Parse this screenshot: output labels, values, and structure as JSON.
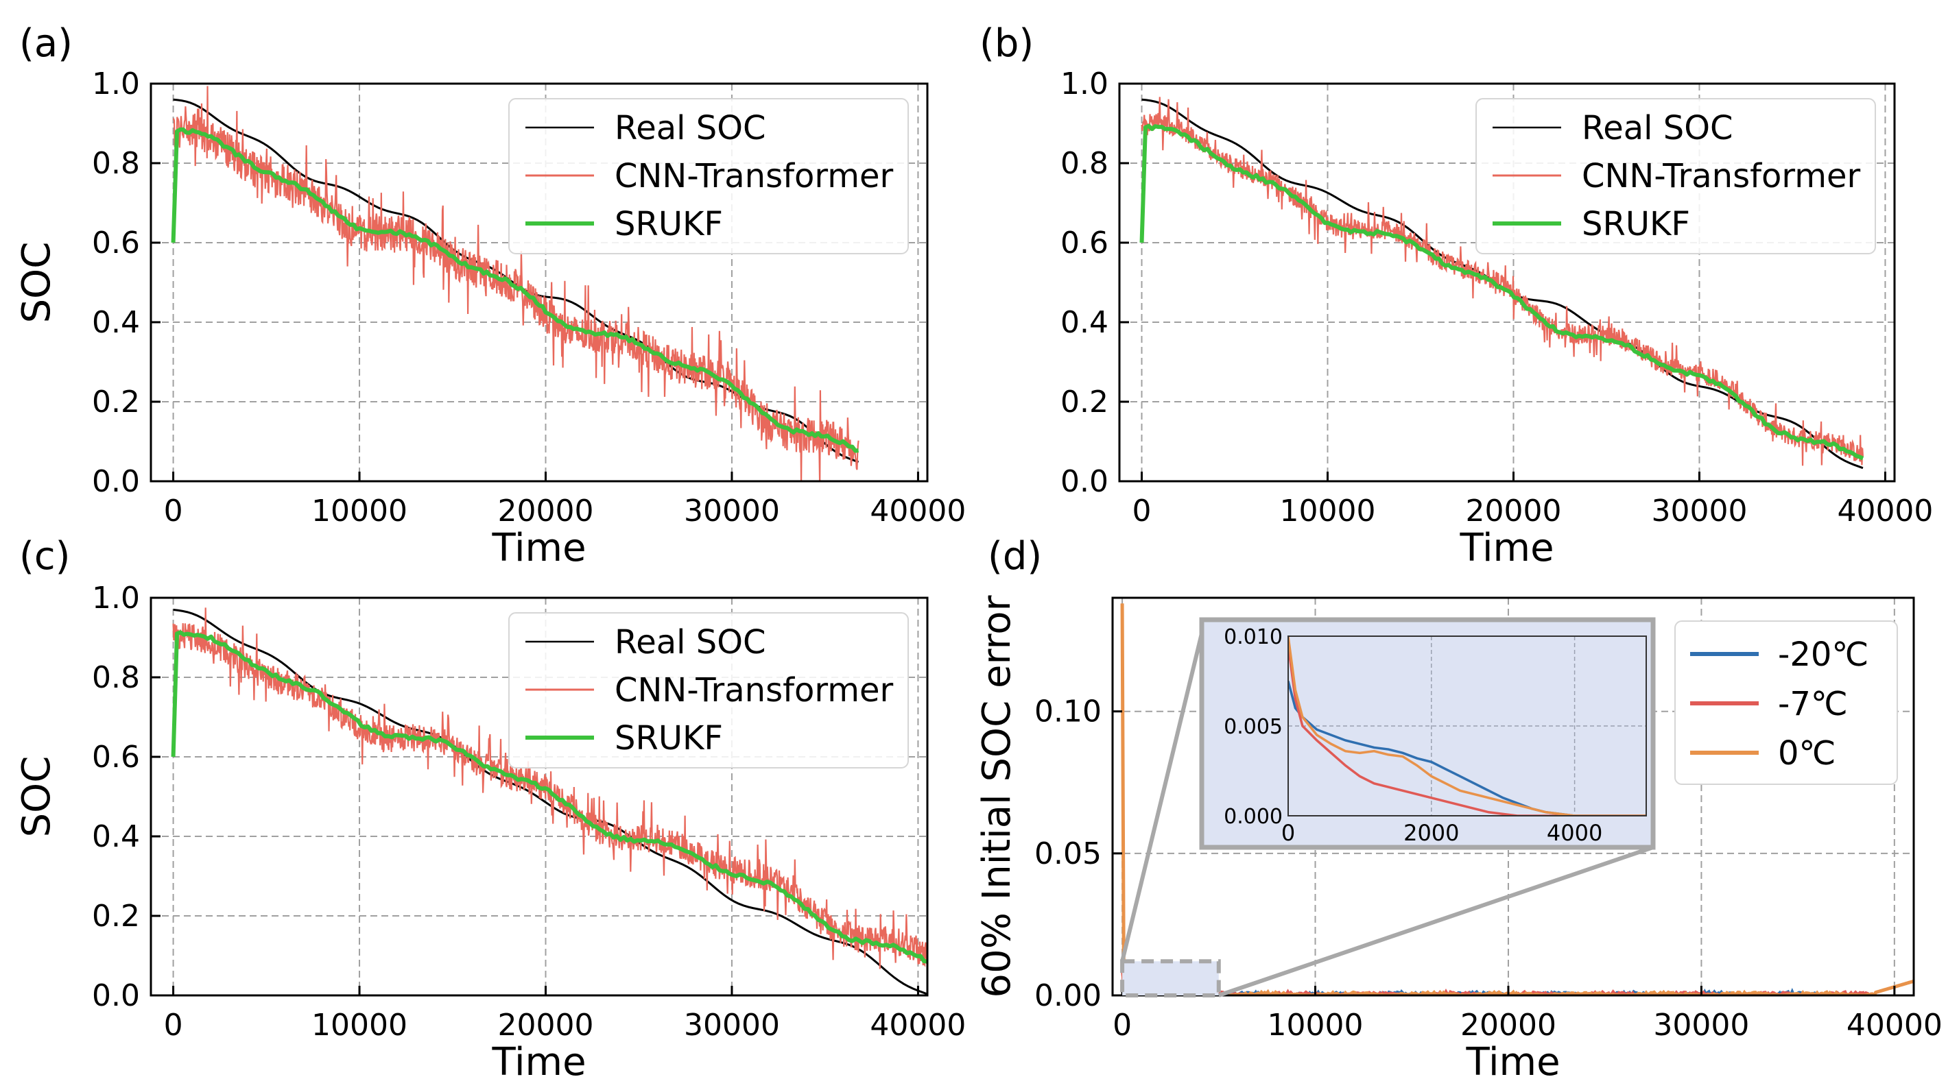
{
  "chart_data": [
    {
      "panel_label": "(a)",
      "type": "line",
      "xlabel": "Time",
      "ylabel": "SOC",
      "xlim": [
        -1200,
        40500
      ],
      "ylim": [
        0.0,
        1.0
      ],
      "xticks": [
        0,
        10000,
        20000,
        30000,
        40000
      ],
      "xtick_labels": [
        "0",
        "10000",
        "20000",
        "30000",
        "40000"
      ],
      "yticks": [
        0.0,
        0.2,
        0.4,
        0.6,
        0.8,
        1.0
      ],
      "ytick_labels": [
        "0.0",
        "0.2",
        "0.4",
        "0.6",
        "0.8",
        "1.0"
      ],
      "grid": true,
      "legend_position": "upper-right",
      "series": [
        {
          "name": "Real SOC",
          "color": "#000000",
          "kind": "linear",
          "start": [
            0,
            0.96
          ],
          "end": [
            36800,
            0.055
          ]
        },
        {
          "name": "CNN-Transformer",
          "color": "#e8685b",
          "kind": "noisy",
          "start": [
            0,
            0.88
          ],
          "end": [
            36800,
            0.07
          ],
          "noise": 0.045
        },
        {
          "name": "SRUKF",
          "color": "#3cc23c",
          "kind": "filter",
          "start_value": 0.6,
          "peak": [
            200,
            0.88
          ],
          "end": [
            36800,
            0.075
          ]
        }
      ]
    },
    {
      "panel_label": "(b)",
      "type": "line",
      "xlabel": "Time",
      "ylabel": "SOC",
      "xlim": [
        -1200,
        40500
      ],
      "ylim": [
        0.0,
        1.0
      ],
      "xticks": [
        0,
        10000,
        20000,
        30000,
        40000
      ],
      "xtick_labels": [
        "0",
        "10000",
        "20000",
        "30000",
        "40000"
      ],
      "yticks": [
        0.0,
        0.2,
        0.4,
        0.6,
        0.8,
        1.0
      ],
      "ytick_labels": [
        "0.0",
        "0.2",
        "0.4",
        "0.6",
        "0.8",
        "1.0"
      ],
      "grid": true,
      "legend_position": "upper-right",
      "series": [
        {
          "name": "Real SOC",
          "color": "#000000",
          "kind": "linear",
          "start": [
            0,
            0.96
          ],
          "end": [
            38800,
            0.04
          ]
        },
        {
          "name": "CNN-Transformer",
          "color": "#e8685b",
          "kind": "noisy",
          "start": [
            0,
            0.9
          ],
          "end": [
            38800,
            0.06
          ],
          "noise": 0.025
        },
        {
          "name": "SRUKF",
          "color": "#3cc23c",
          "kind": "filter",
          "start_value": 0.6,
          "peak": [
            200,
            0.89
          ],
          "end": [
            38800,
            0.055
          ]
        }
      ]
    },
    {
      "panel_label": "(c)",
      "type": "line",
      "xlabel": "Time",
      "ylabel": "SOC",
      "xlim": [
        -1200,
        40500
      ],
      "ylim": [
        0.0,
        1.0
      ],
      "xticks": [
        0,
        10000,
        20000,
        30000,
        40000
      ],
      "xtick_labels": [
        "0",
        "10000",
        "20000",
        "30000",
        "40000"
      ],
      "yticks": [
        0.0,
        0.2,
        0.4,
        0.6,
        0.8,
        1.0
      ],
      "ytick_labels": [
        "0.0",
        "0.2",
        "0.4",
        "0.6",
        "0.8",
        "1.0"
      ],
      "grid": true,
      "legend_position": "upper-right",
      "series": [
        {
          "name": "Real SOC",
          "color": "#000000",
          "kind": "linear",
          "start": [
            0,
            0.97
          ],
          "end": [
            40500,
            0.01
          ]
        },
        {
          "name": "CNN-Transformer",
          "color": "#e8685b",
          "kind": "noisy",
          "start": [
            0,
            0.9
          ],
          "end": [
            40500,
            0.1
          ],
          "noise": 0.035
        },
        {
          "name": "SRUKF",
          "color": "#3cc23c",
          "kind": "filter",
          "start_value": 0.6,
          "peak": [
            200,
            0.91
          ],
          "end": [
            40500,
            0.085
          ]
        }
      ]
    },
    {
      "panel_label": "(d)",
      "type": "line",
      "xlabel": "Time",
      "ylabel": "60% Initial SOC error",
      "xlim": [
        -500,
        41000
      ],
      "ylim": [
        0.0,
        0.14
      ],
      "xticks": [
        0,
        10000,
        20000,
        30000,
        40000
      ],
      "xtick_labels": [
        "0",
        "10000",
        "20000",
        "30000",
        "40000"
      ],
      "yticks": [
        0.0,
        0.05,
        0.1
      ],
      "ytick_labels": [
        "0.00",
        "0.05",
        "0.10"
      ],
      "grid": true,
      "legend_position": "upper-right",
      "series": [
        {
          "name": "-20℃",
          "color": "#2f6fb0",
          "peak": 0.012,
          "end": 36000
        },
        {
          "name": "-7℃",
          "color": "#e05a55",
          "peak": 0.01,
          "end": 39000
        },
        {
          "name": "0℃",
          "color": "#e8924a",
          "peak": 0.138,
          "end": 41000
        }
      ],
      "inset": {
        "xlim": [
          0,
          5000
        ],
        "ylim": [
          0.0,
          0.01
        ],
        "xticks": [
          0,
          2000,
          4000
        ],
        "xtick_labels": [
          "0",
          "2000",
          "4000"
        ],
        "yticks": [
          0.0,
          0.005,
          0.01
        ],
        "ytick_labels": [
          "0.000",
          "0.005",
          "0.010"
        ],
        "series": [
          {
            "name": "-20℃",
            "points": [
              [
                0,
                0.0075
              ],
              [
                100,
                0.006
              ],
              [
                200,
                0.0055
              ],
              [
                400,
                0.0048
              ],
              [
                600,
                0.0045
              ],
              [
                800,
                0.0042
              ],
              [
                1000,
                0.004
              ],
              [
                1200,
                0.0038
              ],
              [
                1400,
                0.0037
              ],
              [
                1600,
                0.0035
              ],
              [
                1800,
                0.0032
              ],
              [
                2000,
                0.003
              ],
              [
                2200,
                0.0026
              ],
              [
                2400,
                0.0022
              ],
              [
                2600,
                0.0018
              ],
              [
                2800,
                0.0014
              ],
              [
                3000,
                0.001
              ],
              [
                3200,
                0.0007
              ],
              [
                3400,
                0.0004
              ],
              [
                3600,
                0.0002
              ],
              [
                3800,
                0.0001
              ],
              [
                4000,
                0.0
              ],
              [
                5000,
                0.0
              ]
            ]
          },
          {
            "name": "-7℃",
            "points": [
              [
                0,
                0.0095
              ],
              [
                100,
                0.0065
              ],
              [
                200,
                0.005
              ],
              [
                400,
                0.0042
              ],
              [
                600,
                0.0035
              ],
              [
                800,
                0.0028
              ],
              [
                1000,
                0.0022
              ],
              [
                1200,
                0.0018
              ],
              [
                1400,
                0.0016
              ],
              [
                1600,
                0.0014
              ],
              [
                1800,
                0.0012
              ],
              [
                2000,
                0.001
              ],
              [
                2200,
                0.0008
              ],
              [
                2400,
                0.0006
              ],
              [
                2600,
                0.0004
              ],
              [
                2800,
                0.0002
              ],
              [
                3000,
                0.0001
              ],
              [
                3200,
                0.0
              ],
              [
                5000,
                0.0
              ]
            ]
          },
          {
            "name": "0℃",
            "points": [
              [
                0,
                0.01
              ],
              [
                100,
                0.007
              ],
              [
                200,
                0.0055
              ],
              [
                400,
                0.0045
              ],
              [
                600,
                0.004
              ],
              [
                800,
                0.0036
              ],
              [
                1000,
                0.0035
              ],
              [
                1200,
                0.0036
              ],
              [
                1400,
                0.0034
              ],
              [
                1600,
                0.0033
              ],
              [
                1800,
                0.0028
              ],
              [
                2000,
                0.0022
              ],
              [
                2200,
                0.0018
              ],
              [
                2400,
                0.0014
              ],
              [
                2600,
                0.0012
              ],
              [
                2800,
                0.001
              ],
              [
                3000,
                0.0008
              ],
              [
                3200,
                0.0006
              ],
              [
                3400,
                0.0004
              ],
              [
                3600,
                0.0002
              ],
              [
                3800,
                0.0001
              ],
              [
                4000,
                0.0
              ],
              [
                5000,
                0.0
              ]
            ]
          }
        ]
      }
    }
  ]
}
